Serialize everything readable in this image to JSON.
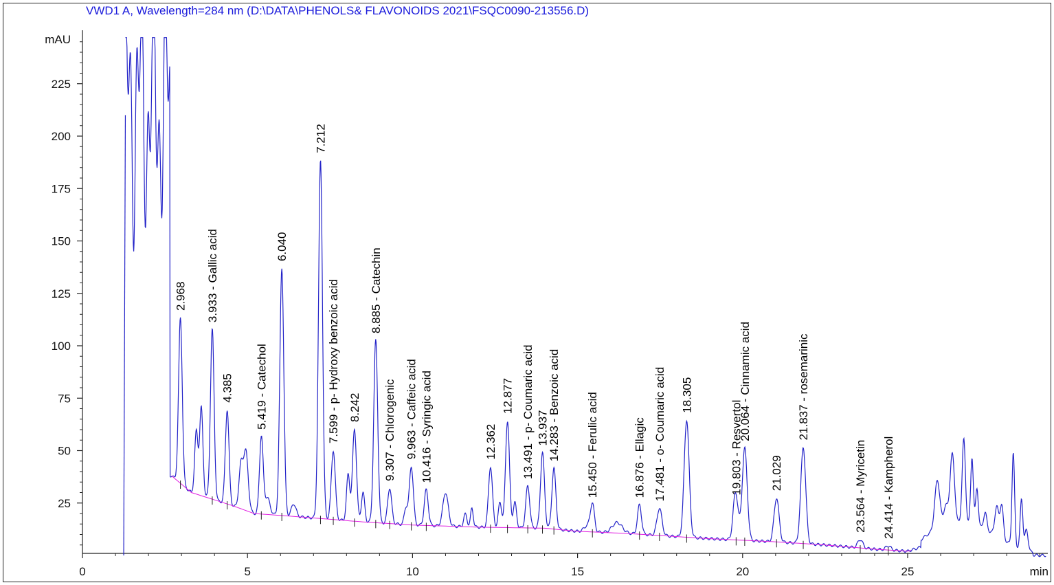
{
  "chart_data": {
    "type": "line",
    "title": "VWD1 A, Wavelength=284 nm (D:\\DATA\\PHENOLS& FLAVONOIDS 2021\\FSQC0090-213556.D)",
    "ylabel": "mAU",
    "xlabel": "min",
    "xlim": [
      0,
      29.3
    ],
    "ylim": [
      0,
      247
    ],
    "x_ticks": [
      "0",
      "5",
      "10",
      "15",
      "20",
      "25"
    ],
    "y_ticks": [
      "25",
      "50",
      "75",
      "100",
      "125",
      "150",
      "175",
      "200",
      "225"
    ],
    "colors": {
      "trace": "#2323c8",
      "baseline": "#e01ee0",
      "title": "#1a1adb"
    },
    "peaks": [
      {
        "rt": 2.968,
        "label": "2.968",
        "height": 79
      },
      {
        "rt": 3.933,
        "label": "3.933 -  Gallic acid",
        "height": 81
      },
      {
        "rt": 4.385,
        "label": "4.385",
        "height": 45
      },
      {
        "rt": 5.419,
        "label": "5.419 -  Catechol",
        "height": 37
      },
      {
        "rt": 6.04,
        "label": "6.040",
        "height": 118
      },
      {
        "rt": 7.212,
        "label": "7.212",
        "height": 171
      },
      {
        "rt": 7.599,
        "label": "7.599 -  p- Hydroxy benzoic acid",
        "height": 33
      },
      {
        "rt": 8.242,
        "label": "8.242",
        "height": 44
      },
      {
        "rt": 8.885,
        "label": "8.885 -  Catechin",
        "height": 87
      },
      {
        "rt": 9.307,
        "label": "9.307 -  Chlorogenic",
        "height": 17
      },
      {
        "rt": 9.963,
        "label": "9.963 -  Caffeic acid",
        "height": 28
      },
      {
        "rt": 10.416,
        "label": "10.416 -  Syringic acid",
        "height": 17
      },
      {
        "rt": 12.362,
        "label": "12.362",
        "height": 29
      },
      {
        "rt": 12.877,
        "label": "12.877",
        "height": 51
      },
      {
        "rt": 13.491,
        "label": "13.491 -  p- Coumaric acid",
        "height": 20
      },
      {
        "rt": 13.937,
        "label": "13.937",
        "height": 36
      },
      {
        "rt": 14.283,
        "label": "14.283 -  Benzoic acid",
        "height": 29
      },
      {
        "rt": 15.45,
        "label": "15.450 -  Ferulic acid",
        "height": 13
      },
      {
        "rt": 16.876,
        "label": "16.876 -  Ellagic",
        "height": 14
      },
      {
        "rt": 17.481,
        "label": "17.481 -  o- Coumaric acid",
        "height": 13
      },
      {
        "rt": 18.305,
        "label": "18.305",
        "height": 56
      },
      {
        "rt": 19.803,
        "label": "19.803 -  Resvertol",
        "height": 18
      },
      {
        "rt": 20.064,
        "label": "20.064 -  Cinnamic acid",
        "height": 44
      },
      {
        "rt": 21.029,
        "label": "21.029",
        "height": 21
      },
      {
        "rt": 21.837,
        "label": "21.837 -  rosemarinic",
        "height": 46
      },
      {
        "rt": 23.564,
        "label": "23.564 -  Myricetin",
        "height": 4
      },
      {
        "rt": 24.414,
        "label": "24.414 -  Kampherol",
        "height": 2
      }
    ]
  }
}
